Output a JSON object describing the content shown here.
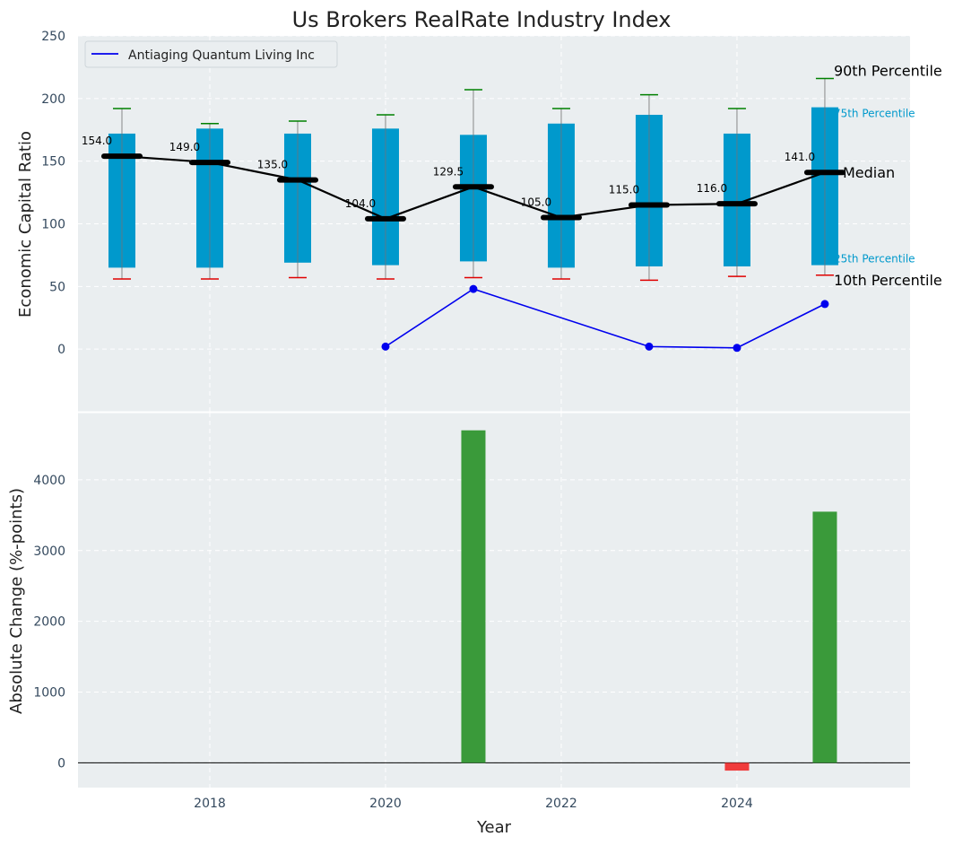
{
  "chart_data": [
    {
      "type": "box",
      "title": "Us Brokers RealRate Industry Index",
      "ylabel": "Economic Capital Ratio",
      "ylim": [
        -50,
        250
      ],
      "yticks": [
        0,
        50,
        100,
        150,
        200,
        250
      ],
      "xlim": [
        2016.5,
        2025.97
      ],
      "grid": true,
      "legend": {
        "position": "top-left",
        "entries": [
          "Antiaging Quantum Living Inc"
        ]
      },
      "annotations": {
        "p90": "90th Percentile",
        "p75": "75th Percentile",
        "median": "Median",
        "p25": "25th Percentile",
        "p10": "10th Percentile"
      },
      "years": [
        2017,
        2018,
        2019,
        2020,
        2021,
        2022,
        2023,
        2024,
        2025
      ],
      "p10": [
        56,
        56,
        57,
        56,
        57,
        56,
        55,
        58,
        59
      ],
      "p25": [
        65,
        65,
        69,
        67,
        70,
        65,
        66,
        66,
        67
      ],
      "median": [
        154.0,
        149.0,
        135.0,
        104.0,
        129.5,
        105.0,
        115.0,
        116.0,
        141.0
      ],
      "median_labels": [
        "154.0",
        "149.0",
        "135.0",
        "104.0",
        "129.5",
        "105.0",
        "115.0",
        "116.0",
        "141.0"
      ],
      "p75": [
        172,
        176,
        172,
        176,
        171,
        180,
        187,
        172,
        193
      ],
      "p90": [
        192,
        180,
        182,
        187,
        207,
        192,
        203,
        192,
        216
      ],
      "company_series": {
        "name": "Antiaging Quantum Living Inc",
        "x": [
          2020,
          2021,
          2023,
          2024,
          2025
        ],
        "y": [
          2,
          48,
          2,
          1,
          36
        ]
      }
    },
    {
      "type": "bar",
      "xlabel": "Year",
      "ylabel": "Absolute Change (%-points)",
      "ylim": [
        -350,
        4950
      ],
      "yticks": [
        0,
        1000,
        2000,
        3000,
        4000
      ],
      "xticks": [
        2018,
        2020,
        2022,
        2024
      ],
      "grid": true,
      "x": [
        2021,
        2024,
        2025
      ],
      "values": [
        4700,
        -110,
        3550
      ]
    }
  ],
  "colors": {
    "box": "#0099cc",
    "median_line": "#000000",
    "company": "#0000ee",
    "whisker_high": "#008000",
    "whisker_low": "#e00000",
    "bar_up": "#3a9a3a",
    "bar_down": "#f03c3c",
    "panel_bg": "#eaeef0",
    "tick_text": "#34495e"
  }
}
